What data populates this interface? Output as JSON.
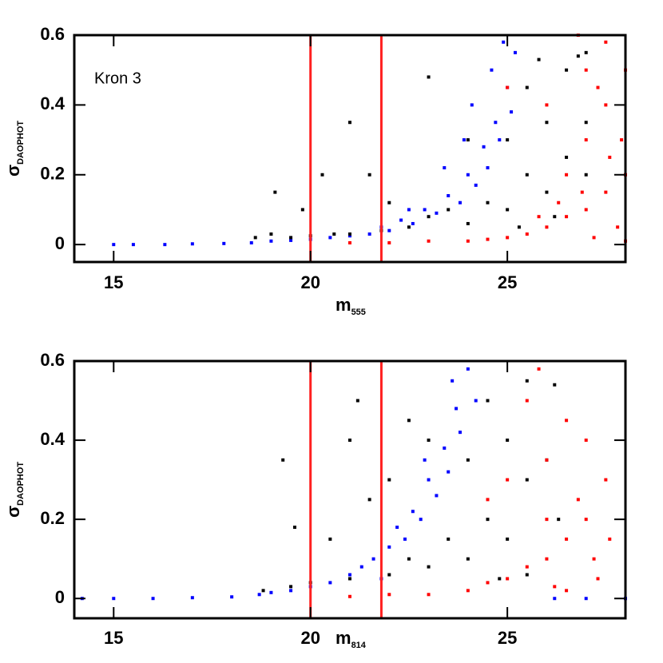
{
  "chart_data": [
    {
      "type": "scatter",
      "annotation": "Kron 3",
      "xlabel": "m",
      "xlabel_sub": "555",
      "ylabel": "σ",
      "ylabel_sub": "DAOPHOT",
      "xlim": [
        14,
        28
      ],
      "ylim": [
        -0.05,
        0.6
      ],
      "xticks": [
        15,
        20,
        25
      ],
      "yticks": [
        0,
        0.2,
        0.4,
        0.6
      ],
      "vlines": [
        20,
        21.8
      ],
      "vline_color": "#ff2020",
      "series": [
        {
          "color": "#0000ff",
          "x": [
            15,
            15.5,
            16.3,
            17,
            17.8,
            18.5,
            19,
            19.5,
            20,
            20.5,
            21,
            21.5,
            21.8,
            22,
            22.3,
            22.6,
            22.9,
            23.2,
            23.5,
            23.8,
            24,
            24.2,
            24.4,
            24.5,
            24.7,
            24.8,
            25,
            25.1,
            24.6,
            24.9,
            25.2,
            23.9,
            23.4,
            24.1,
            22.5
          ],
          "y": [
            0,
            0,
            0,
            0.002,
            0.003,
            0.005,
            0.01,
            0.012,
            0.015,
            0.02,
            0.025,
            0.03,
            0.05,
            0.04,
            0.07,
            0.06,
            0.1,
            0.09,
            0.14,
            0.12,
            0.2,
            0.17,
            0.28,
            0.22,
            0.35,
            0.3,
            0.45,
            0.38,
            0.5,
            0.58,
            0.55,
            0.3,
            0.22,
            0.4,
            0.1
          ]
        },
        {
          "color": "#000000",
          "x": [
            18.6,
            19,
            19.1,
            19.5,
            19.8,
            20,
            20.3,
            20.6,
            21,
            21,
            21.5,
            21.8,
            22,
            22.5,
            23,
            23,
            23.5,
            24,
            24,
            24.5,
            25,
            25,
            25.5,
            25.5,
            26,
            26,
            26.5,
            26.5,
            27,
            27,
            26.8,
            25.8,
            25.3,
            26.2,
            27
          ],
          "y": [
            0.02,
            0.03,
            0.15,
            0.02,
            0.1,
            0.025,
            0.2,
            0.03,
            0.35,
            0.03,
            0.2,
            0.04,
            0.12,
            0.05,
            0.48,
            0.08,
            0.1,
            0.06,
            0.3,
            0.12,
            0.1,
            0.3,
            0.2,
            0.45,
            0.15,
            0.35,
            0.25,
            0.5,
            0.35,
            0.55,
            0.54,
            0.53,
            0.05,
            0.08,
            0.2
          ]
        },
        {
          "color": "#ff0000",
          "x": [
            21,
            22,
            23,
            24,
            25,
            25,
            25.5,
            26,
            26,
            26.5,
            26.5,
            27,
            27,
            27,
            27.5,
            27.5,
            27.5,
            28,
            28,
            27.8,
            27.2,
            26.8,
            27.9,
            26.3,
            25.8,
            24.5,
            27.6,
            26.9,
            27.3,
            28
          ],
          "y": [
            0.005,
            0.005,
            0.01,
            0.01,
            0.02,
            0.45,
            0.03,
            0.05,
            0.4,
            0.08,
            0.2,
            0.1,
            0.3,
            0.5,
            0.15,
            0.4,
            0.58,
            0.2,
            0.5,
            0.05,
            0.02,
            0.6,
            0.3,
            0.12,
            0.08,
            0.015,
            0.25,
            0.15,
            0.45,
            0.01
          ]
        }
      ]
    },
    {
      "type": "scatter",
      "xlabel": "m",
      "xlabel_sub": "814",
      "ylabel": "σ",
      "ylabel_sub": "DAOPHOT",
      "xlim": [
        14,
        28
      ],
      "ylim": [
        -0.05,
        0.6
      ],
      "xticks": [
        15,
        20,
        25
      ],
      "yticks": [
        0,
        0.2,
        0.4,
        0.6
      ],
      "vlines": [
        20,
        21.8
      ],
      "vline_color": "#ff2020",
      "series": [
        {
          "color": "#0000ff",
          "x": [
            14.2,
            15,
            16,
            17,
            18,
            18.7,
            19,
            19.5,
            20,
            20.5,
            21,
            21.3,
            21.6,
            22,
            22.2,
            22.4,
            22.6,
            22.8,
            23,
            23.2,
            23.4,
            23.5,
            23.7,
            23.8,
            24,
            23.6,
            22.9,
            24.2,
            21.8,
            26.2,
            27,
            28
          ],
          "y": [
            0,
            0,
            0,
            0.002,
            0.004,
            0.01,
            0.015,
            0.02,
            0.03,
            0.04,
            0.06,
            0.08,
            0.1,
            0.13,
            0.18,
            0.15,
            0.22,
            0.2,
            0.3,
            0.26,
            0.38,
            0.32,
            0.48,
            0.42,
            0.58,
            0.55,
            0.35,
            0.5,
            0.05,
            0,
            0,
            0
          ]
        },
        {
          "color": "#000000",
          "x": [
            18.8,
            19.3,
            19.5,
            19.6,
            20,
            20.5,
            21,
            21.2,
            21,
            21.5,
            22,
            22,
            22.5,
            23,
            23,
            23.5,
            24,
            24,
            24.5,
            24.5,
            25,
            25,
            25.5,
            25.5,
            26,
            26.2,
            26.3,
            25.5,
            24.8,
            22.5
          ],
          "y": [
            0.02,
            0.35,
            0.03,
            0.18,
            0.04,
            0.15,
            0.4,
            0.5,
            0.05,
            0.25,
            0.06,
            0.3,
            0.1,
            0.08,
            0.4,
            0.15,
            0.1,
            0.35,
            0.2,
            0.5,
            0.15,
            0.4,
            0.3,
            0.55,
            0.35,
            0.54,
            0.2,
            0.06,
            0.05,
            0.45
          ]
        },
        {
          "color": "#ff0000",
          "x": [
            21,
            22,
            23,
            24,
            24.5,
            25,
            25,
            25.5,
            25.5,
            26,
            26,
            26.5,
            26.5,
            27,
            27,
            27.2,
            26.8,
            27.5,
            27.6,
            26.2,
            25.8,
            27.3,
            26.5,
            24.5,
            26
          ],
          "y": [
            0.005,
            0.01,
            0.01,
            0.02,
            0.04,
            0.05,
            0.3,
            0.08,
            0.5,
            0.1,
            0.35,
            0.15,
            0.45,
            0.2,
            0.4,
            0.1,
            0.25,
            0.3,
            0.15,
            0.03,
            0.58,
            0.05,
            0.02,
            0.25,
            0.2
          ]
        }
      ]
    }
  ]
}
